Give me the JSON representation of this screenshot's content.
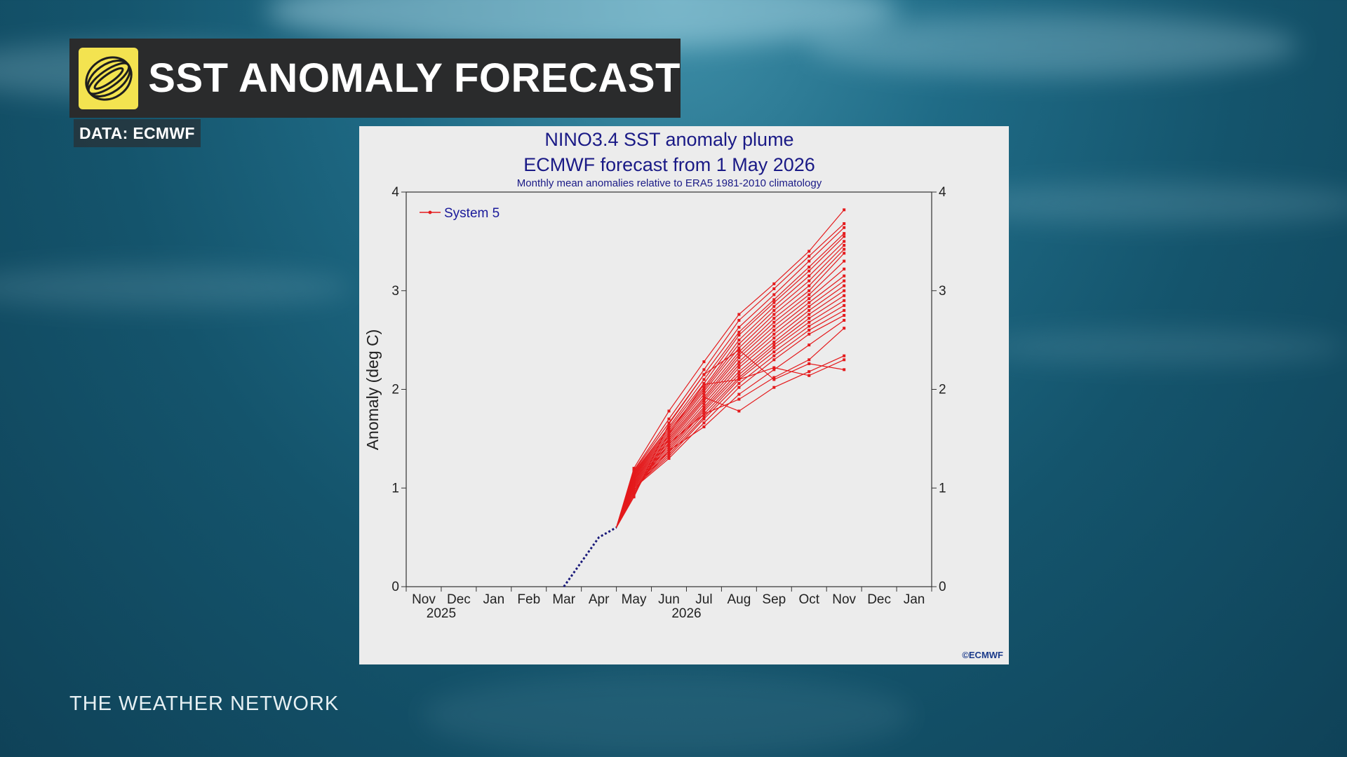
{
  "header": {
    "title": "SST ANOMALY FORECAST",
    "source": "DATA: ECMWF"
  },
  "footer": {
    "brand": "THE WEATHER NETWORK"
  },
  "colors": {
    "title_bar": "#2a2b2c",
    "logo_bg": "#f3e350",
    "series": "#e41a1c",
    "observed": "#1a1a7a",
    "chart_text": "#1a1a86"
  },
  "icons": {
    "logo": "globe-logo-icon"
  },
  "chart_data": {
    "type": "line",
    "title": "NINO3.4 SST anomaly plume",
    "subtitle": "ECMWF forecast from 1 May 2026",
    "note": "Monthly mean anomalies relative to ERA5 1981-2010 climatology",
    "ylabel": "Anomaly (deg C)",
    "ylim": [
      0,
      4
    ],
    "yticks": [
      0,
      1,
      2,
      3,
      4
    ],
    "categories": [
      "Nov",
      "Dec",
      "Jan",
      "Feb",
      "Mar",
      "Apr",
      "May",
      "Jun",
      "Jul",
      "Aug",
      "Sep",
      "Oct",
      "Nov",
      "Dec",
      "Jan"
    ],
    "year_labels": [
      {
        "label": "2025",
        "index": 0.5
      },
      {
        "label": "2026",
        "index": 7.5
      }
    ],
    "legend": {
      "label": "System 5",
      "position": "top-left"
    },
    "credit": "©ECMWF",
    "observed": {
      "x": [
        4.0,
        4.5,
        5.0,
        5.5
      ],
      "values": [
        0.0,
        0.25,
        0.5,
        0.6
      ]
    },
    "ensemble": {
      "x": [
        5.5,
        6.0,
        7.0,
        8.0,
        9.0,
        10.0,
        11.0,
        12.0
      ],
      "members": [
        [
          0.6,
          1.2,
          1.78,
          2.28,
          2.76,
          3.07,
          3.4,
          3.82
        ],
        [
          0.6,
          1.18,
          1.7,
          2.2,
          2.7,
          3.02,
          3.35,
          3.68
        ],
        [
          0.6,
          1.17,
          1.66,
          2.15,
          2.63,
          2.96,
          3.3,
          3.64
        ],
        [
          0.6,
          1.16,
          1.62,
          2.1,
          2.58,
          2.91,
          3.24,
          3.58
        ],
        [
          0.6,
          1.15,
          1.6,
          2.06,
          2.55,
          2.88,
          3.2,
          3.55
        ],
        [
          0.6,
          1.14,
          1.58,
          2.02,
          2.5,
          2.84,
          3.15,
          3.5
        ],
        [
          0.6,
          1.13,
          1.56,
          2.0,
          2.46,
          2.8,
          3.1,
          3.46
        ],
        [
          0.6,
          1.12,
          1.54,
          1.98,
          2.42,
          2.76,
          3.05,
          3.42
        ],
        [
          0.6,
          1.11,
          1.52,
          1.95,
          2.38,
          2.72,
          3.0,
          3.38
        ],
        [
          0.6,
          1.1,
          1.5,
          1.92,
          2.35,
          2.68,
          2.96,
          3.3
        ],
        [
          0.6,
          1.09,
          1.48,
          1.9,
          2.32,
          2.64,
          2.92,
          3.22
        ],
        [
          0.6,
          1.08,
          1.46,
          1.88,
          2.28,
          2.6,
          2.88,
          3.15
        ],
        [
          0.6,
          1.07,
          1.44,
          1.85,
          2.25,
          2.56,
          2.84,
          3.1
        ],
        [
          0.6,
          1.06,
          1.42,
          1.82,
          2.22,
          2.52,
          2.8,
          3.05
        ],
        [
          0.6,
          1.05,
          1.4,
          1.8,
          2.18,
          2.48,
          2.76,
          3.0
        ],
        [
          0.6,
          1.04,
          1.38,
          1.78,
          2.15,
          2.45,
          2.72,
          2.95
        ],
        [
          0.6,
          1.03,
          1.36,
          1.75,
          2.12,
          2.42,
          2.68,
          2.9
        ],
        [
          0.6,
          1.02,
          1.34,
          1.72,
          2.1,
          2.38,
          2.64,
          2.85
        ],
        [
          0.6,
          1.01,
          1.32,
          1.7,
          2.06,
          2.34,
          2.6,
          2.8
        ],
        [
          0.6,
          1.0,
          1.3,
          1.66,
          2.02,
          2.3,
          2.56,
          2.75
        ],
        [
          0.6,
          0.98,
          1.38,
          1.62,
          1.95,
          2.2,
          2.45,
          2.7
        ],
        [
          0.6,
          0.97,
          1.45,
          1.75,
          1.9,
          2.12,
          2.3,
          2.62
        ],
        [
          0.6,
          0.95,
          1.5,
          1.92,
          1.78,
          2.02,
          2.18,
          2.34
        ],
        [
          0.6,
          0.93,
          1.55,
          2.05,
          2.1,
          2.22,
          2.14,
          2.3
        ],
        [
          0.6,
          0.91,
          1.65,
          2.15,
          2.4,
          2.1,
          2.26,
          2.2
        ]
      ]
    }
  }
}
